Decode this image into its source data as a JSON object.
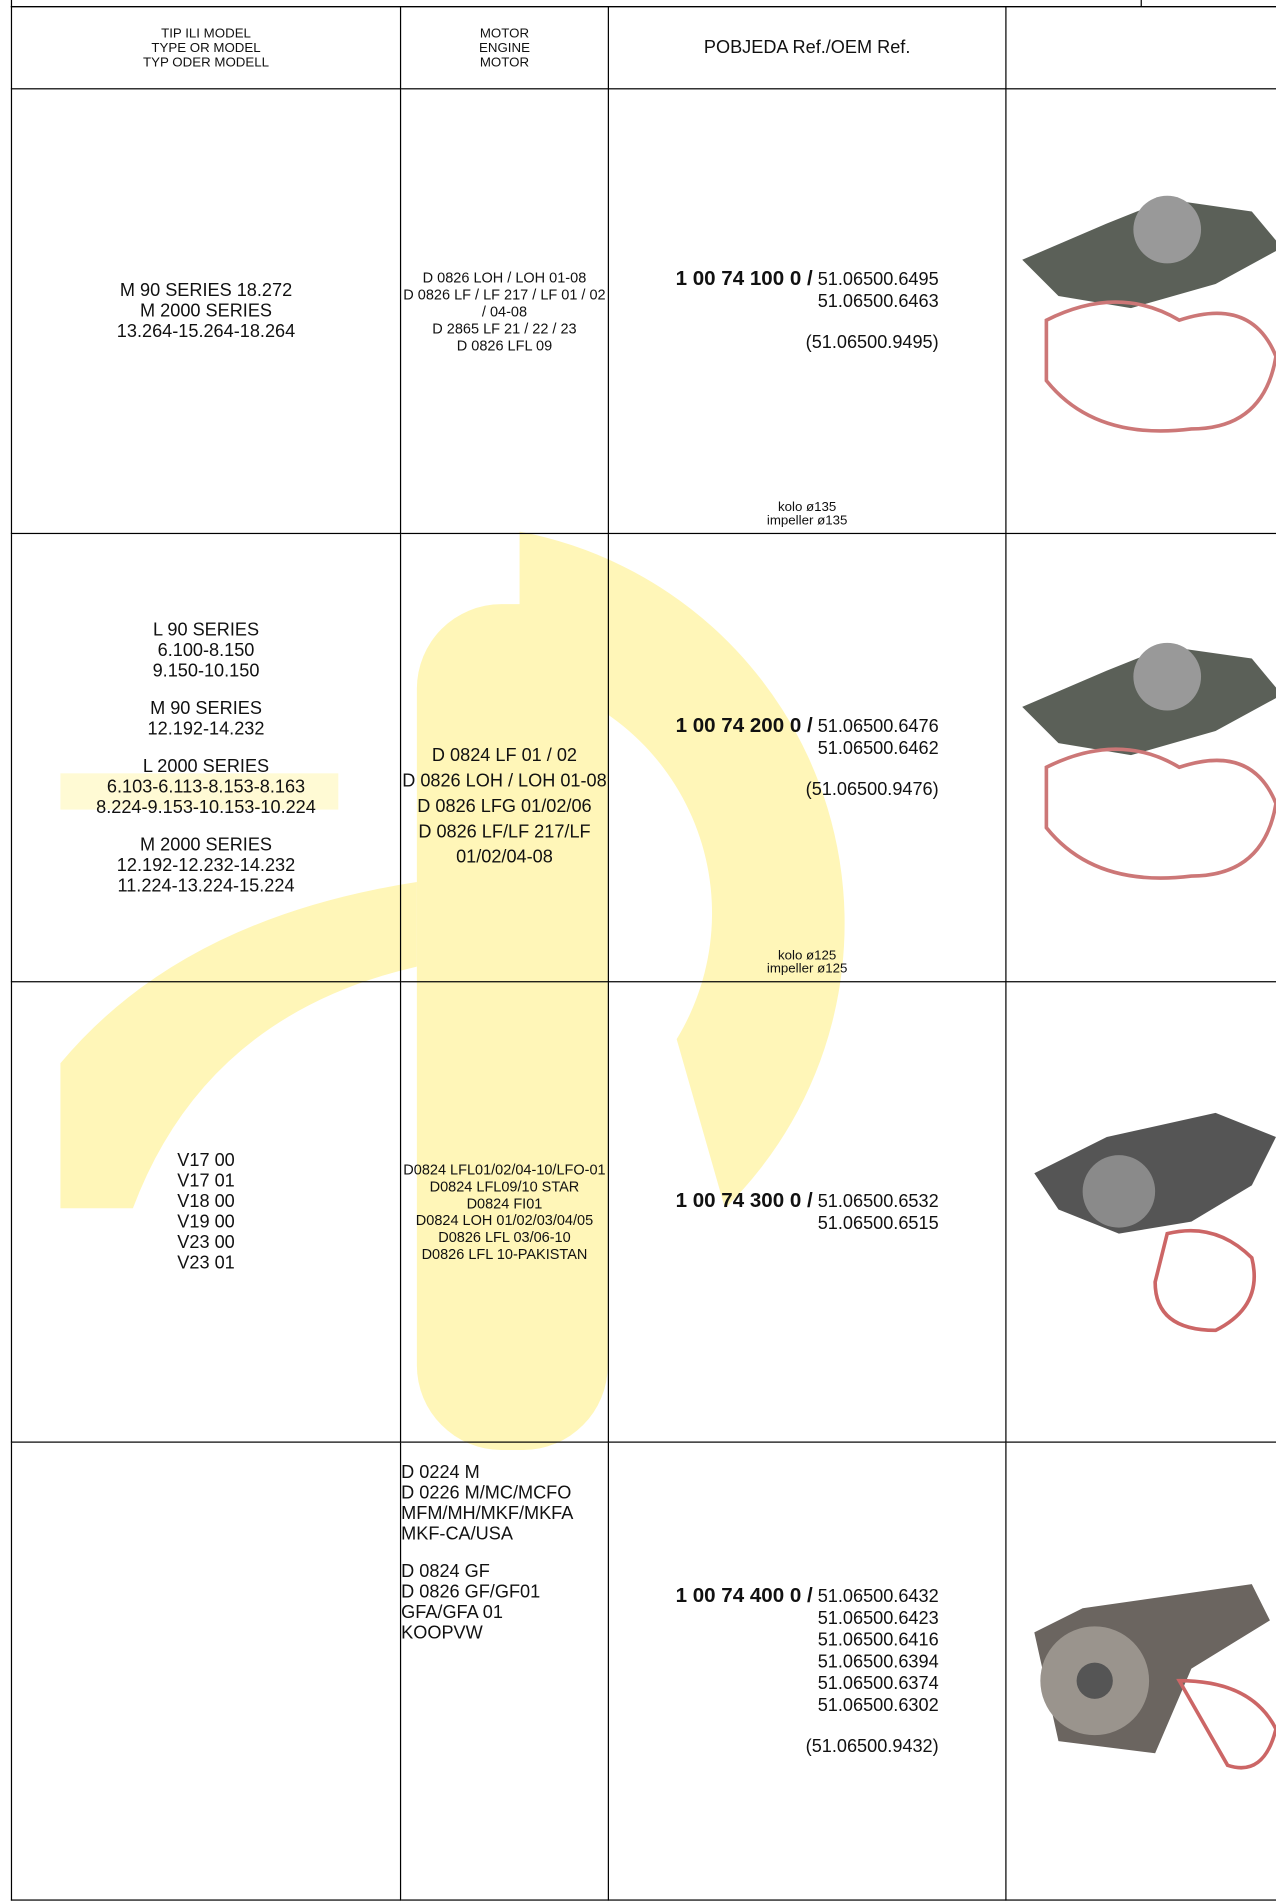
{
  "header": {
    "model": [
      "TIP ILI MODEL",
      "TYPE OR MODEL",
      "TYP ODER MODELL"
    ],
    "engine": [
      "MOTOR",
      "ENGINE",
      "MOTOR"
    ],
    "ref": "POBJEDA Ref./OEM Ref."
  },
  "rows": [
    {
      "models": [
        [
          "M 90 SERIES 18.272",
          "M 2000 SERIES",
          "13.264-15.264-18.264"
        ]
      ],
      "engines": [
        [
          "D 0826 LOH / LOH 01-08",
          "D 0826 LF / LF 217 / LF 01 / 02 / 04-08",
          "D 2865 LF 21 / 22 / 23",
          "D 0826 LFL 09"
        ]
      ],
      "ref": "1 00 74 100 0 /",
      "oem": [
        "51.06500.6495",
        "51.06500.6463"
      ],
      "extra": "(51.06500.9495)",
      "note": [
        "kolo ø135",
        "impeller ø135"
      ]
    },
    {
      "models": [
        [
          "L 90 SERIES",
          "6.100-8.150",
          "9.150-10.150"
        ],
        [
          "M 90 SERIES",
          "12.192-14.232"
        ],
        [
          "L 2000 SERIES",
          "6.103-6.113-8.153-8.163",
          "8.224-9.153-10.153-10.224"
        ],
        [
          "M 2000 SERIES",
          "12.192-12.232-14.232",
          "11.224-13.224-15.224"
        ]
      ],
      "engines": [
        [
          "D 0824 LF 01 / 02",
          "D 0826 LOH / LOH 01-08",
          "D 0826 LFG 01/02/06",
          "D 0826 LF/LF 217/LF 01/02/04-08"
        ]
      ],
      "ref": "1 00 74 200 0 /",
      "oem": [
        "51.06500.6476",
        "51.06500.6462"
      ],
      "extra": "(51.06500.9476)",
      "note": [
        "kolo ø125",
        "impeller ø125"
      ]
    },
    {
      "models": [
        [
          "V17 00",
          "V17 01",
          "V18 00",
          "V19 00",
          "V23 00",
          "V23 01"
        ]
      ],
      "engines": [
        [
          "D0824 LFL01/02/04-10/LFO-01",
          "D0824 LFL09/10 STAR",
          "D0824 FI01",
          "D0824 LOH 01/02/03/04/05",
          "D0826 LFL 03/06-10",
          "D0826 LFL 10-PAKISTAN"
        ]
      ],
      "ref": "1 00 74 300 0 /",
      "oem": [
        "51.06500.6532",
        "51.06500.6515"
      ]
    },
    {
      "models": [],
      "engines": [
        [
          "D 0224 M",
          "D 0226 M/MC/MCFO",
          "MFM/MH/MKF/MKFA",
          "MKF-CA/USA"
        ],
        [
          "D 0824 GF",
          "D 0826 GF/GF01",
          "GFA/GFA 01",
          "KOOPVW"
        ]
      ],
      "ref": "1 00 74 400 0 /",
      "oem": [
        "51.06500.6432",
        "51.06500.6423",
        "51.06500.6416",
        "51.06500.6394",
        "51.06500.6374",
        "51.06500.6302"
      ],
      "extra": "(51.06500.9432)"
    }
  ]
}
